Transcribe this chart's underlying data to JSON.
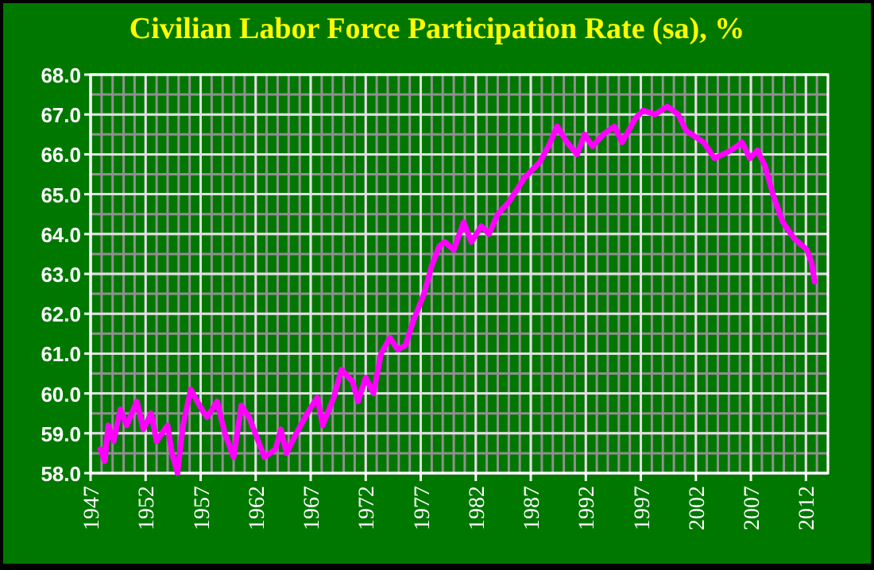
{
  "chart_data": {
    "type": "line",
    "title": "Civilian Labor Force Participation Rate (sa), %",
    "xlim": [
      1947,
      2014
    ],
    "ylim": [
      58,
      68
    ],
    "xticks": [
      1947,
      1952,
      1957,
      1962,
      1967,
      1972,
      1977,
      1982,
      1987,
      1992,
      1997,
      2002,
      2007,
      2012
    ],
    "yticks": [
      {
        "value": 58,
        "label": "58.0"
      },
      {
        "value": 59,
        "label": "59.0"
      },
      {
        "value": 60,
        "label": "60.0"
      },
      {
        "value": 61,
        "label": "61.0"
      },
      {
        "value": 62,
        "label": "62.0"
      },
      {
        "value": 63,
        "label": "63.0"
      },
      {
        "value": 64,
        "label": "64.0"
      },
      {
        "value": 65,
        "label": "65.0"
      },
      {
        "value": 66,
        "label": "66.0"
      },
      {
        "value": 67,
        "label": "67.0"
      },
      {
        "value": 68,
        "label": "68.0"
      }
    ],
    "grid": true,
    "marker": "none",
    "line_style": "solid",
    "series": [
      {
        "color": "#ff00ff",
        "x": [
          1947.9,
          1948.3,
          1948.6,
          1949.1,
          1949.7,
          1950.3,
          1951.2,
          1951.8,
          1952.5,
          1953.0,
          1954.0,
          1954.4,
          1954.9,
          1955.4,
          1956.1,
          1957.1,
          1957.6,
          1958.5,
          1959.2,
          1960.0,
          1960.7,
          1961.4,
          1962.1,
          1962.8,
          1963.8,
          1964.3,
          1964.8,
          1965.7,
          1966.7,
          1967.6,
          1968.1,
          1969.1,
          1969.8,
          1970.8,
          1971.3,
          1972.0,
          1972.7,
          1973.4,
          1974.2,
          1974.9,
          1975.6,
          1976.3,
          1977.3,
          1978.0,
          1978.7,
          1979.2,
          1980.0,
          1980.9,
          1981.6,
          1982.5,
          1983.2,
          1984.0,
          1985.0,
          1986.4,
          1987.8,
          1988.6,
          1989.4,
          1990.3,
          1991.2,
          1991.9,
          1992.6,
          1993.6,
          1994.6,
          1995.3,
          1996.5,
          1997.2,
          1998.3,
          1999.4,
          2000.4,
          2001.1,
          2002.7,
          2003.7,
          2005.2,
          2006.2,
          2006.9,
          2007.6,
          2008.3,
          2009.0,
          2009.9,
          2010.9,
          2012.1,
          2012.5,
          2012.8
        ],
        "values": [
          58.6,
          58.3,
          59.2,
          58.8,
          59.6,
          59.2,
          59.8,
          59.1,
          59.5,
          58.8,
          59.2,
          58.5,
          58.0,
          59.2,
          60.1,
          59.6,
          59.4,
          59.8,
          59.0,
          58.4,
          59.7,
          59.4,
          58.9,
          58.4,
          58.6,
          59.1,
          58.5,
          59.0,
          59.5,
          59.9,
          59.2,
          59.9,
          60.6,
          60.3,
          59.8,
          60.4,
          60.0,
          61.0,
          61.4,
          61.1,
          61.2,
          61.8,
          62.5,
          63.2,
          63.7,
          63.8,
          63.6,
          64.3,
          63.8,
          64.2,
          64.0,
          64.5,
          64.8,
          65.4,
          65.8,
          66.2,
          66.7,
          66.3,
          66.0,
          66.5,
          66.2,
          66.5,
          66.7,
          66.3,
          66.9,
          67.1,
          67.0,
          67.2,
          67.0,
          66.6,
          66.3,
          65.9,
          66.1,
          66.3,
          65.9,
          66.1,
          65.7,
          65.0,
          64.3,
          63.9,
          63.6,
          63.3,
          62.8
        ]
      }
    ]
  }
}
